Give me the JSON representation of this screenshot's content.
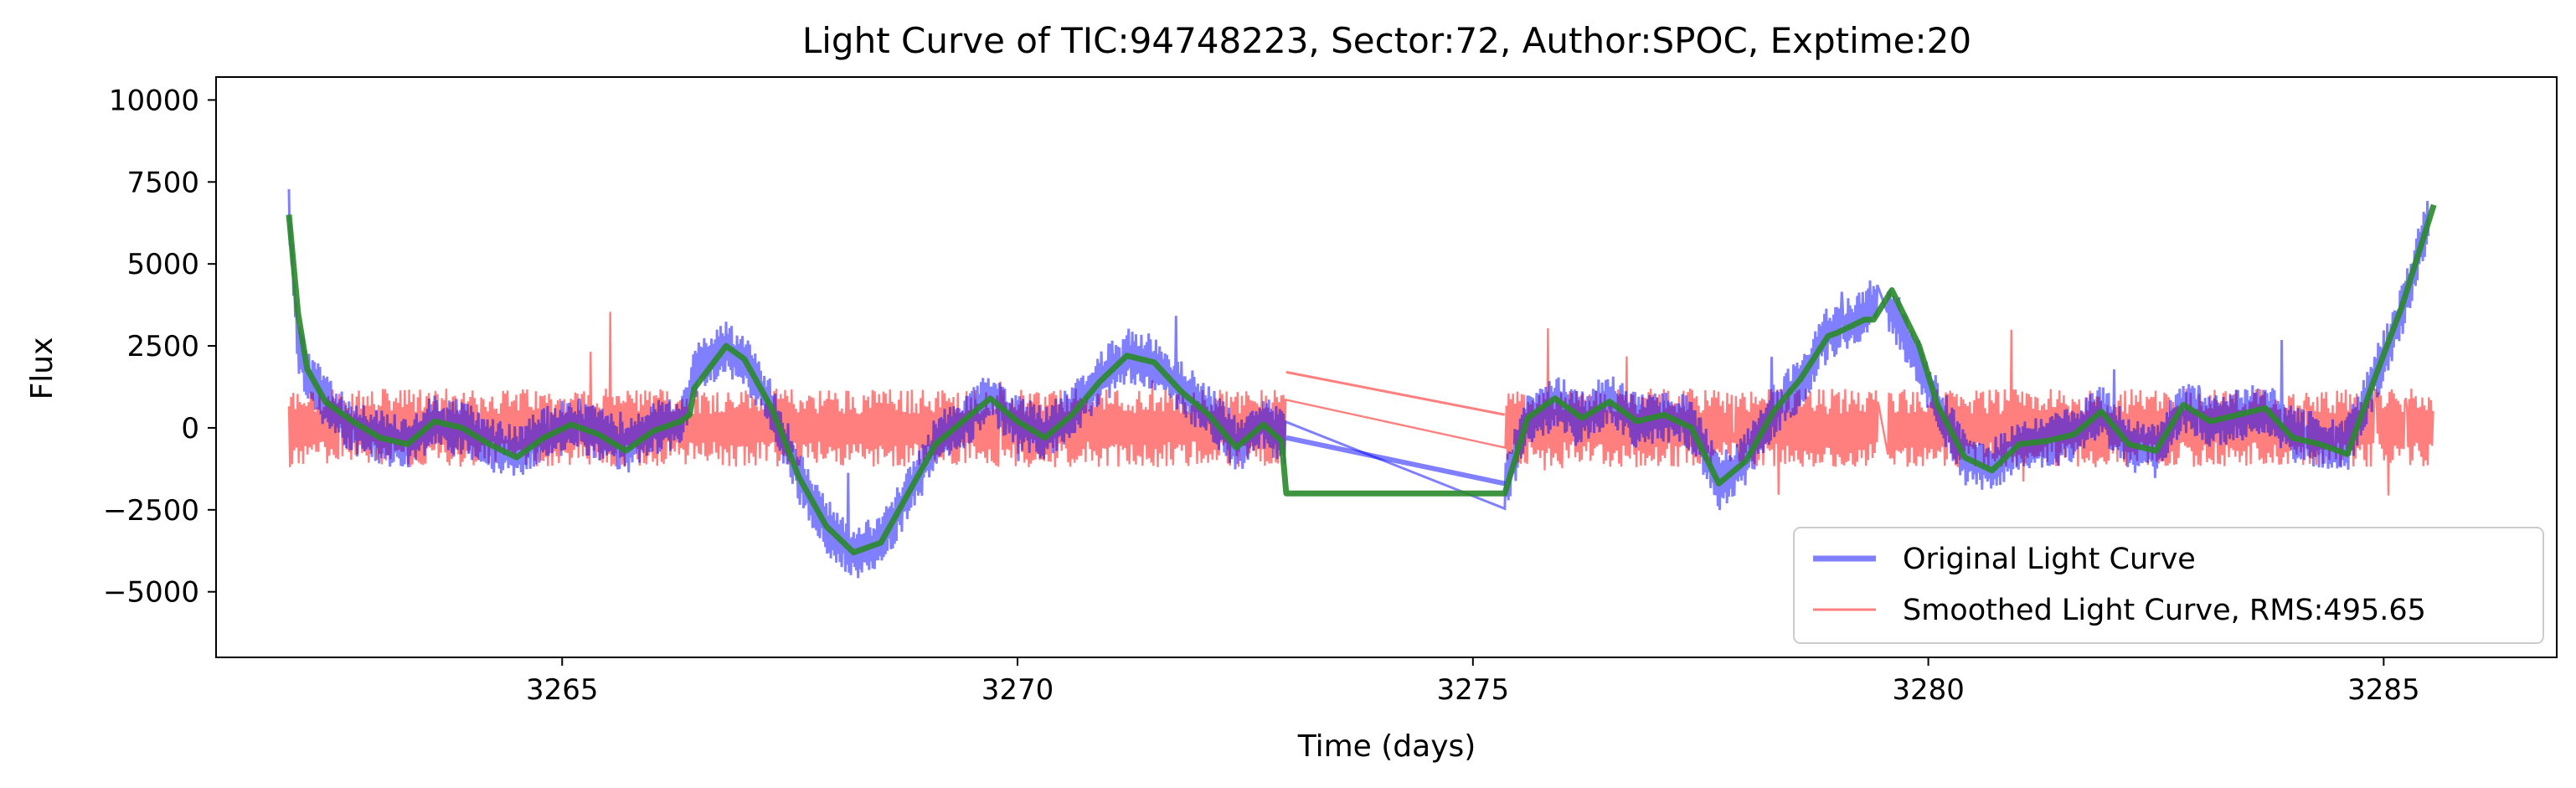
{
  "chart_data": {
    "type": "line",
    "title": "Light Curve of TIC:94748223, Sector:72, Author:SPOC, Exptime:20",
    "xlabel": "Time (days)",
    "ylabel": "Flux",
    "xlim": [
      3261.2,
      3286.9
    ],
    "ylim": [
      -7000,
      10700
    ],
    "xticks": [
      3265,
      3270,
      3275,
      3280,
      3285
    ],
    "xtick_labels": [
      "3265",
      "3270",
      "3275",
      "3280",
      "3285"
    ],
    "yticks": [
      10000,
      7500,
      5000,
      2500,
      0,
      -2500,
      -5000
    ],
    "ytick_labels": [
      "10000",
      "7500",
      "5000",
      "2500",
      "0",
      "−2500",
      "−5000"
    ],
    "grid": false,
    "legend_position": "lower right",
    "legend": [
      {
        "label": "Original Light Curve",
        "color": "#0000ff",
        "alpha": 0.5,
        "line": "thick"
      },
      {
        "label": "Smoothed Light Curve, RMS:495.65",
        "color": "#ff0000",
        "alpha": 0.5,
        "line": "thin"
      }
    ],
    "trend_color": "#2a8a2a",
    "series": [
      {
        "name": "Original Light Curve",
        "color": "#0000ff",
        "x": [
          3262.0,
          3262.05,
          3262.1,
          3262.2,
          3262.3,
          3262.5,
          3262.7,
          3263.0,
          3263.3,
          3263.6,
          3263.9,
          3264.2,
          3264.5,
          3264.8,
          3265.1,
          3265.4,
          3265.7,
          3266.0,
          3266.3,
          3266.5,
          3266.8,
          3267.0,
          3267.3,
          3267.6,
          3267.9,
          3268.2,
          3268.5,
          3268.8,
          3269.1,
          3269.4,
          3269.7,
          3270.0,
          3270.3,
          3270.6,
          3270.9,
          3271.2,
          3271.5,
          3271.8,
          3272.1,
          3272.4,
          3272.7,
          3272.9,
          3275.35,
          3275.6,
          3275.9,
          3276.2,
          3276.5,
          3276.8,
          3277.1,
          3277.4,
          3277.7,
          3278.0,
          3278.3,
          3278.6,
          3278.9,
          3279.2,
          3279.5,
          3279.8,
          3280.1,
          3280.4,
          3280.7,
          3281.0,
          3281.3,
          3281.6,
          3281.9,
          3282.2,
          3282.5,
          3282.8,
          3283.1,
          3283.4,
          3283.7,
          3284.0,
          3284.3,
          3284.6,
          3284.9,
          3285.2,
          3285.5
        ],
        "y": [
          6500,
          4500,
          2500,
          1500,
          1200,
          500,
          0,
          -300,
          -500,
          200,
          0,
          -500,
          -800,
          -200,
          100,
          -200,
          -600,
          0,
          200,
          2000,
          2400,
          2000,
          600,
          -1500,
          -3000,
          -3800,
          -3500,
          -2000,
          -500,
          200,
          900,
          200,
          -200,
          500,
          1500,
          2200,
          2000,
          1200,
          500,
          -500,
          200,
          -300,
          -1700,
          200,
          800,
          300,
          900,
          200,
          400,
          100,
          -1700,
          -900,
          500,
          1400,
          2900,
          3200,
          4100,
          2500,
          700,
          -900,
          -1200,
          -500,
          -400,
          -200,
          500,
          -500,
          -700,
          700,
          200,
          400,
          600,
          -200,
          -400,
          -500,
          1500,
          3500,
          6500
        ],
        "noise_amplitude": 850
      },
      {
        "name": "Smoothed Light Curve, RMS:495.65",
        "color": "#ff0000",
        "x": [
          3262.0,
          3262.9,
          3263.8,
          3264.7,
          3265.6,
          3266.5,
          3267.4,
          3268.3,
          3269.2,
          3270.1,
          3271.0,
          3271.9,
          3272.9,
          3275.35,
          3276.3,
          3277.2,
          3278.1,
          3279.0,
          3279.4,
          3279.6,
          3280.5,
          3281.4,
          3282.3,
          3283.2,
          3284.1,
          3285.0,
          3285.55
        ],
        "y": [
          0,
          0,
          0,
          0,
          0,
          0,
          0,
          0,
          0,
          0,
          0,
          0,
          0,
          0,
          0,
          0,
          0,
          0,
          0,
          0,
          0,
          0,
          0,
          0,
          0,
          0,
          0
        ],
        "noise_amplitude": 1200
      },
      {
        "name": "",
        "color": "#2a8a2a",
        "x": [
          3262.0,
          3262.1,
          3262.2,
          3262.4,
          3262.7,
          3263.0,
          3263.3,
          3263.6,
          3263.9,
          3264.2,
          3264.5,
          3264.8,
          3265.1,
          3265.4,
          3265.7,
          3266.0,
          3266.3,
          3266.4,
          3266.45,
          3266.8,
          3267.0,
          3267.3,
          3267.6,
          3267.9,
          3268.2,
          3268.5,
          3268.8,
          3269.1,
          3269.4,
          3269.7,
          3270.0,
          3270.3,
          3270.6,
          3270.9,
          3271.2,
          3271.5,
          3271.8,
          3272.1,
          3272.4,
          3272.7,
          3272.9,
          3272.95,
          3275.35,
          3275.6,
          3275.9,
          3276.2,
          3276.5,
          3276.8,
          3277.1,
          3277.4,
          3277.7,
          3278.0,
          3278.3,
          3278.6,
          3278.9,
          3279.0,
          3279.3,
          3279.4,
          3279.6,
          3279.9,
          3280.1,
          3280.4,
          3280.7,
          3281.0,
          3281.3,
          3281.6,
          3281.9,
          3282.2,
          3282.5,
          3282.8,
          3283.1,
          3283.4,
          3283.7,
          3284.0,
          3284.3,
          3284.6,
          3284.9,
          3285.2,
          3285.55
        ],
        "y": [
          6500,
          3500,
          1800,
          800,
          200,
          -300,
          -500,
          200,
          0,
          -500,
          -900,
          -300,
          100,
          -200,
          -700,
          -100,
          200,
          400,
          1200,
          2500,
          2100,
          600,
          -1500,
          -3000,
          -3800,
          -3500,
          -2000,
          -500,
          200,
          900,
          200,
          -300,
          400,
          1400,
          2200,
          2000,
          1100,
          400,
          -600,
          100,
          -400,
          -2000,
          -2000,
          300,
          900,
          300,
          800,
          200,
          400,
          0,
          -1700,
          -1000,
          500,
          1500,
          2800,
          2900,
          3300,
          3300,
          4200,
          2500,
          700,
          -900,
          -1300,
          -500,
          -400,
          -200,
          500,
          -500,
          -700,
          700,
          200,
          400,
          600,
          -300,
          -500,
          -800,
          1500,
          3700,
          6800
        ]
      }
    ]
  }
}
